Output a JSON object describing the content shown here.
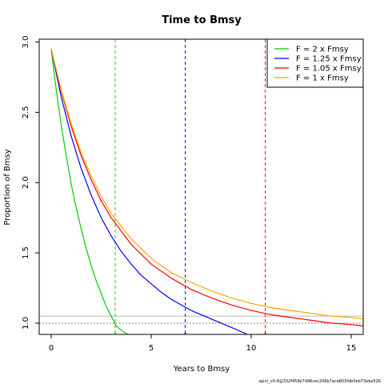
{
  "chart_data": {
    "type": "line",
    "title": "Time to Bmsy",
    "xlabel": "Years to Bmsy",
    "ylabel": "Proportion of Bmsy",
    "xlim": [
      -0.6,
      15.6
    ],
    "ylim": [
      0.92,
      3.02
    ],
    "xticks": [
      0,
      5,
      10,
      15
    ],
    "yticks": [
      1.0,
      1.5,
      2.0,
      2.5,
      3.0
    ],
    "ytick_labels": [
      "1.0",
      "1.5",
      "2.0",
      "2.5",
      "3.0"
    ],
    "grid": false,
    "legend_position": "top-right",
    "series": [
      {
        "name": "F = 2 x Fmsy",
        "color": "#00cd00",
        "x": [
          0,
          0.25,
          0.5,
          0.75,
          1,
          1.25,
          1.5,
          1.75,
          2,
          2.25,
          2.5,
          2.75,
          3,
          3.25,
          3.5,
          3.75,
          3.85
        ],
        "y": [
          2.95,
          2.66,
          2.41,
          2.19,
          1.99,
          1.82,
          1.67,
          1.53,
          1.41,
          1.3,
          1.21,
          1.12,
          1.05,
          0.98,
          0.95,
          0.925,
          0.92
        ],
        "vline": 3.2
      },
      {
        "name": "F = 1.25 x Fmsy",
        "color": "#0000ff",
        "x": [
          0,
          0.5,
          1,
          1.5,
          2,
          2.5,
          3,
          3.5,
          4,
          4.5,
          5,
          5.5,
          6,
          6.5,
          7,
          7.5,
          8,
          8.5,
          9,
          9.5,
          9.8
        ],
        "y": [
          2.95,
          2.61,
          2.33,
          2.1,
          1.91,
          1.75,
          1.62,
          1.51,
          1.42,
          1.34,
          1.28,
          1.22,
          1.17,
          1.13,
          1.09,
          1.06,
          1.03,
          1.0,
          0.97,
          0.94,
          0.92
        ],
        "vline": 6.7
      },
      {
        "name": "F = 1.05 x Fmsy",
        "color": "#ff0000",
        "x": [
          0,
          0.5,
          1,
          1.5,
          2,
          2.5,
          3,
          4,
          5,
          6,
          7,
          8,
          9,
          10,
          11,
          12,
          13,
          14,
          15,
          15.6
        ],
        "y": [
          2.95,
          2.65,
          2.4,
          2.19,
          2.02,
          1.87,
          1.75,
          1.56,
          1.42,
          1.32,
          1.24,
          1.18,
          1.13,
          1.09,
          1.06,
          1.04,
          1.02,
          1.0,
          0.99,
          0.98
        ],
        "vline": 10.7
      },
      {
        "name": "F = 1 x Fmsy",
        "color": "#ffa500",
        "x": [
          0,
          0.5,
          1,
          1.5,
          2,
          2.5,
          3,
          4,
          5,
          6,
          7,
          8,
          9,
          10,
          11,
          12,
          13,
          14,
          15,
          15.6
        ],
        "y": [
          2.95,
          2.66,
          2.42,
          2.21,
          2.05,
          1.9,
          1.78,
          1.6,
          1.46,
          1.36,
          1.29,
          1.23,
          1.18,
          1.14,
          1.11,
          1.09,
          1.07,
          1.05,
          1.04,
          1.03
        ]
      }
    ],
    "reference_lines": [
      {
        "axis": "y",
        "value": 1.0,
        "style": "dotted",
        "color": "#555555"
      },
      {
        "axis": "y",
        "value": 1.05,
        "style": "solid",
        "color": "#bbbbbb"
      }
    ],
    "footer": "spict_v0.4@332f459e7d96cec206b7aca803fdb0eb73eba526"
  }
}
